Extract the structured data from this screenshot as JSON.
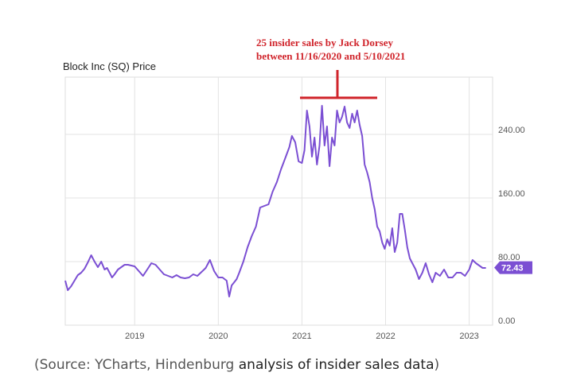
{
  "chart_data": {
    "type": "line",
    "title": "Block Inc (SQ) Price",
    "ylim": [
      0,
      312
    ],
    "xlim": [
      2018.17,
      2023.28
    ],
    "yticks": [
      0,
      80,
      160,
      240
    ],
    "ytick_labels": [
      "0.00",
      "80.00",
      "160.00",
      "240.00"
    ],
    "xticks": [
      2019,
      2020,
      2021,
      2022,
      2023
    ],
    "xtick_labels": [
      "2019",
      "2020",
      "2021",
      "2022",
      "2023"
    ],
    "grid": true,
    "legend": "none",
    "last_value_label": "72.43",
    "series": [
      {
        "color": "#7b4fd3",
        "x": [
          2018.17,
          2018.2,
          2018.24,
          2018.28,
          2018.32,
          2018.36,
          2018.4,
          2018.44,
          2018.48,
          2018.52,
          2018.56,
          2018.6,
          2018.64,
          2018.67,
          2018.7,
          2018.73,
          2018.76,
          2018.8,
          2018.84,
          2018.88,
          2018.92,
          2018.96,
          2019.0,
          2019.05,
          2019.1,
          2019.15,
          2019.2,
          2019.25,
          2019.3,
          2019.35,
          2019.4,
          2019.45,
          2019.5,
          2019.55,
          2019.6,
          2019.65,
          2019.7,
          2019.75,
          2019.8,
          2019.85,
          2019.9,
          2019.95,
          2020.0,
          2020.05,
          2020.1,
          2020.13,
          2020.16,
          2020.19,
          2020.22,
          2020.25,
          2020.3,
          2020.35,
          2020.4,
          2020.45,
          2020.5,
          2020.55,
          2020.6,
          2020.65,
          2020.7,
          2020.75,
          2020.8,
          2020.85,
          2020.88,
          2020.92,
          2020.96,
          2021.0,
          2021.03,
          2021.06,
          2021.09,
          2021.12,
          2021.15,
          2021.18,
          2021.21,
          2021.24,
          2021.27,
          2021.3,
          2021.33,
          2021.36,
          2021.39,
          2021.42,
          2021.45,
          2021.48,
          2021.51,
          2021.54,
          2021.57,
          2021.6,
          2021.63,
          2021.66,
          2021.69,
          2021.72,
          2021.75,
          2021.78,
          2021.81,
          2021.84,
          2021.87,
          2021.9,
          2021.93,
          2021.96,
          2021.99,
          2022.02,
          2022.05,
          2022.08,
          2022.11,
          2022.14,
          2022.17,
          2022.2,
          2022.23,
          2022.26,
          2022.29,
          2022.32,
          2022.36,
          2022.4,
          2022.44,
          2022.48,
          2022.52,
          2022.56,
          2022.6,
          2022.65,
          2022.7,
          2022.75,
          2022.8,
          2022.85,
          2022.9,
          2022.95,
          2023.0,
          2023.04,
          2023.08,
          2023.12,
          2023.16,
          2023.2
        ],
        "values": [
          56,
          44,
          49,
          56,
          63,
          66,
          71,
          79,
          88,
          80,
          73,
          80,
          70,
          72,
          66,
          60,
          64,
          70,
          73,
          76,
          76,
          75,
          74,
          68,
          62,
          70,
          78,
          76,
          70,
          64,
          62,
          60,
          63,
          60,
          59,
          60,
          64,
          62,
          67,
          72,
          82,
          68,
          60,
          60,
          56,
          36,
          50,
          54,
          58,
          66,
          80,
          98,
          112,
          124,
          148,
          150,
          152,
          168,
          180,
          196,
          210,
          224,
          238,
          230,
          206,
          204,
          220,
          270,
          250,
          212,
          236,
          202,
          226,
          276,
          226,
          250,
          200,
          236,
          226,
          270,
          255,
          262,
          275,
          255,
          248,
          266,
          255,
          270,
          252,
          238,
          202,
          192,
          180,
          160,
          146,
          124,
          118,
          104,
          96,
          108,
          100,
          122,
          92,
          104,
          140,
          140,
          120,
          98,
          84,
          78,
          70,
          58,
          66,
          78,
          64,
          54,
          66,
          62,
          70,
          60,
          60,
          66,
          66,
          62,
          70,
          82,
          78,
          75,
          72,
          72
        ]
      }
    ]
  },
  "annotation": {
    "line1": "25 insider sales by Jack Dorsey",
    "line2": "between 11/16/2020 and 5/10/2021"
  },
  "caption": {
    "prefix": "(Source: YCharts, Hindenburg ",
    "highlight": "analysis of insider sales data",
    "suffix": ")"
  },
  "colors": {
    "line": "#7b4fd3",
    "annotation": "#d0242b",
    "grid": "#e3e3e3",
    "badge": "#7b4fd3"
  }
}
